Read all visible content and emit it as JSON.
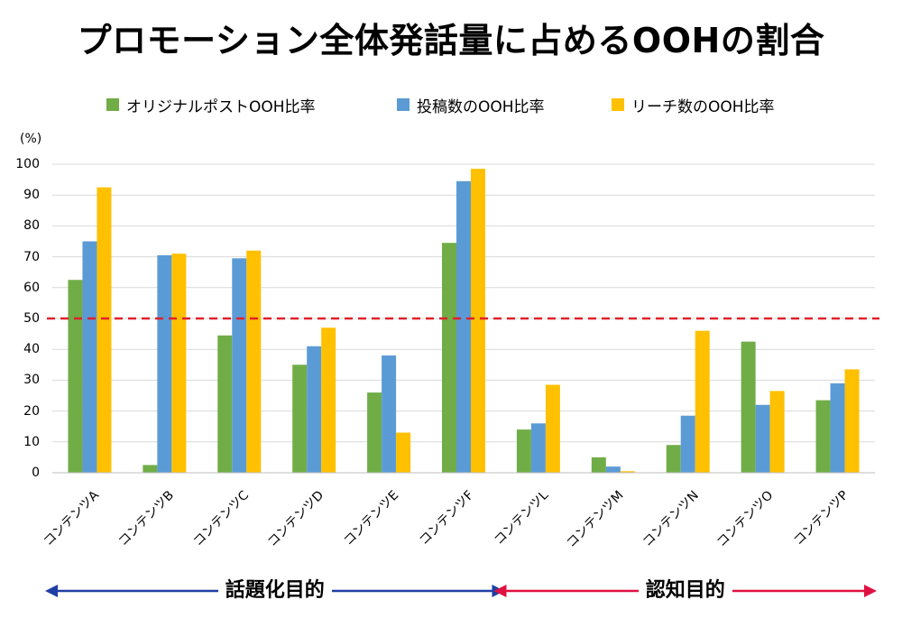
{
  "title": "プロモーション全体発話量に占めるOOHの割合",
  "colors": {
    "green": "#70ad47",
    "blue": "#5b9bd5",
    "yellow": "#ffc000",
    "threshold": "#e0202c",
    "arrow_blue": "#1f3fa5",
    "arrow_red": "#e01040",
    "grid": "#d9d9d9"
  },
  "chart_data": {
    "type": "bar",
    "title": "プロモーション全体発話量に占めるOOHの割合",
    "ylabel": "(%)",
    "xlabel": "",
    "ylim": [
      0,
      100
    ],
    "yticks": [
      "100",
      "90",
      "80",
      "70",
      "60",
      "50",
      "40",
      "30",
      "20",
      "10",
      "0"
    ],
    "grid": true,
    "legend_position": "top",
    "categories": [
      "コンテンツA",
      "コンテンツB",
      "コンテンツC",
      "コンテンツD",
      "コンテンツE",
      "コンテンツF",
      "コンテンツL",
      "コンテンツM",
      "コンテンツN",
      "コンテンツO",
      "コンテンツP"
    ],
    "series": [
      {
        "name": "オリジナルポストOOH比率",
        "color": "#70ad47",
        "values": [
          62.5,
          2.5,
          44.5,
          35.0,
          26.0,
          74.5,
          14.0,
          5.0,
          9.0,
          42.5,
          23.5
        ]
      },
      {
        "name": "投稿数のOOH比率",
        "color": "#5b9bd5",
        "values": [
          75.0,
          70.5,
          69.5,
          41.0,
          38.0,
          94.5,
          16.0,
          2.0,
          18.5,
          22.0,
          29.0
        ]
      },
      {
        "name": "リーチ数のOOH比率",
        "color": "#ffc000",
        "values": [
          92.5,
          71.0,
          72.0,
          47.0,
          13.0,
          98.5,
          28.5,
          0.5,
          46.0,
          26.5,
          33.5
        ]
      }
    ],
    "threshold": 50,
    "groups": [
      {
        "label": "話題化目的",
        "range": [
          0,
          5
        ],
        "color": "#1f3fa5"
      },
      {
        "label": "認知目的",
        "range": [
          6,
          10
        ],
        "color": "#e01040"
      }
    ]
  }
}
